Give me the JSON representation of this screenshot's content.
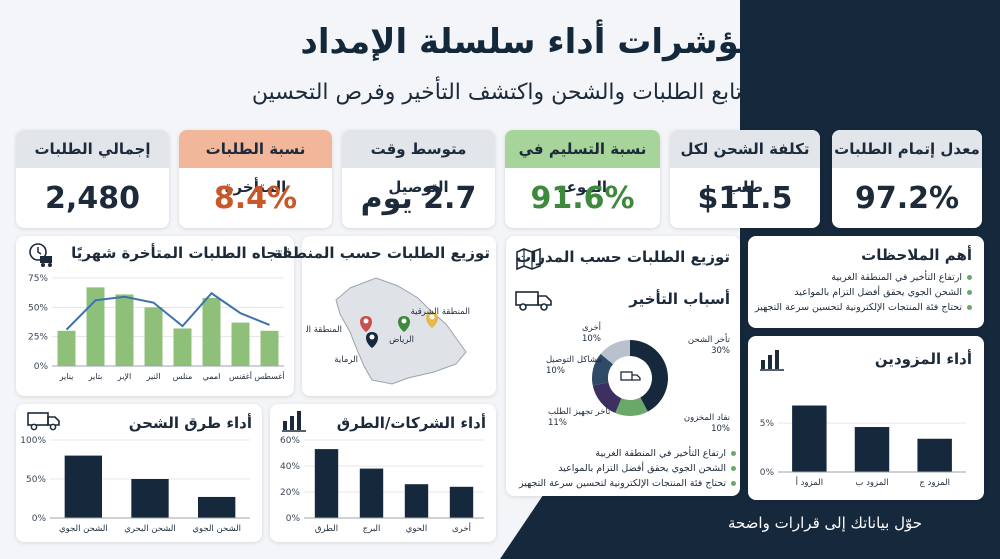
{
  "header": {
    "title": "مؤشرات أداء سلسلة الإمداد",
    "subtitle": "تابع الطلبات والشحن واكتشف التأخير وفرص التحسين",
    "tagline": "حوّل بياناتك إلى قرارات واضحة"
  },
  "kpis": [
    {
      "label": "معدل إتمام الطلبات",
      "value": "97.2%"
    },
    {
      "label": "تكلفة الشحن لكل طلب",
      "value": "$11.5"
    },
    {
      "label": "نسبة التسليم في الموعد",
      "value": "91.6%"
    },
    {
      "label": "متوسط وقت التوصيل",
      "value": "2.7 يوم"
    },
    {
      "label": "نسبة الطلبات المتأخرة",
      "value": "8.4%"
    },
    {
      "label": "إجمالي الطلبات",
      "value": "2,480"
    }
  ],
  "colors": {
    "navy": "#16283c",
    "green": "#6aa86a",
    "bar_green": "#8fc07a",
    "line_blue": "#3d73a8",
    "orange": "#f2b69a"
  },
  "panels": {
    "trend": {
      "title": "اتجاه الطلبات المتأخرة شهريًا",
      "icon": "delivery-truck-icon"
    },
    "region": {
      "title": "توزيع الطلبات حسب المنطقة",
      "icon": "map-icon",
      "labels": [
        "المنطقة الشرقية",
        "الرياض",
        "المنطقة الغربية",
        "الرماية"
      ]
    },
    "reasons": {
      "title": "توزيع الطلبات حسب المدرات",
      "subtitle": "أسباب التأخير",
      "icon": "truck-icon"
    },
    "notes": {
      "title": "أهم الملاحظات",
      "items": [
        "ارتفاع التأخير في المنطقة الغربية",
        "الشحن الجوي يحقق أفضل التزام بالمواعيد",
        "تحتاج فئة المنتجات الإلكترونية لتحسين سرعة التجهيز"
      ]
    },
    "reasons_notes": {
      "items": [
        "ارتفاع التأخير في المنطقة الغربية",
        "الشحن الجوي يحقق أفضل التزام بالمواعيد",
        "تحتاج فئة المنتجات الإلكترونية لتحسين سرعة التجهيز"
      ]
    },
    "suppliers": {
      "title": "أداء المزودين",
      "icon": "bar-chart-icon"
    },
    "shipping": {
      "title": "أداء طرق الشحن",
      "icon": "truck-icon"
    },
    "carriers": {
      "title": "أداء الشركات/الطرق",
      "icon": "bar-chart-icon"
    }
  },
  "chart_data": [
    {
      "type": "bar",
      "title": "اتجاه الطلبات المتأخرة شهريًا",
      "categories": [
        "يناير",
        "بتاير",
        "الإبر",
        "النير",
        "منلس",
        "اممي",
        "أغقنس",
        "أغسطس"
      ],
      "values": [
        30,
        67,
        61,
        50,
        32,
        58,
        37,
        30
      ],
      "line": [
        31,
        56,
        59,
        54,
        34,
        62,
        45,
        35
      ],
      "yticks": [
        "0%",
        "25%",
        "50%",
        "75%"
      ],
      "ylim": [
        0,
        75
      ]
    },
    {
      "type": "pie",
      "title": "أسباب التأخير",
      "slices": [
        {
          "label": "تأخر الشحن",
          "value": 30,
          "text": "30%",
          "color": "#16283c"
        },
        {
          "label": "نفاد المخزون",
          "value": 10,
          "text": "10%",
          "color": "#6aa86a"
        },
        {
          "label": "تأخر تجهيز الطلب",
          "value": 11,
          "text": "11%",
          "color": "#3d3060"
        },
        {
          "label": "مشاكل التوصيل",
          "value": 10,
          "text": "10%",
          "color": "#2f4a66"
        },
        {
          "label": "أخرى",
          "value": 10,
          "text": "10%",
          "color": "#b9c2cc"
        }
      ]
    },
    {
      "type": "bar",
      "title": "أداء المزودين",
      "categories": [
        "المزود أ",
        "المزود ب",
        "المزود ج"
      ],
      "values": [
        6.8,
        4.6,
        3.4
      ],
      "yticks": [
        "0%",
        "5%"
      ],
      "ylim": [
        0,
        9
      ]
    },
    {
      "type": "bar",
      "title": "أداء طرق الشحن",
      "categories": [
        "الشحن الجوي",
        "الشحن البحري",
        "الشحن الجوي"
      ],
      "values": [
        80,
        50,
        27
      ],
      "yticks": [
        "0%",
        "50%",
        "100%"
      ],
      "ylim": [
        0,
        100
      ]
    },
    {
      "type": "bar",
      "title": "أداء الشركات/الطرق",
      "categories": [
        "الطرق",
        "البرج",
        "الحوي",
        "أخرى"
      ],
      "values": [
        53,
        38,
        26,
        24
      ],
      "yticks": [
        "0%",
        "20%",
        "40%",
        "60%"
      ],
      "ylim": [
        0,
        60
      ]
    }
  ]
}
